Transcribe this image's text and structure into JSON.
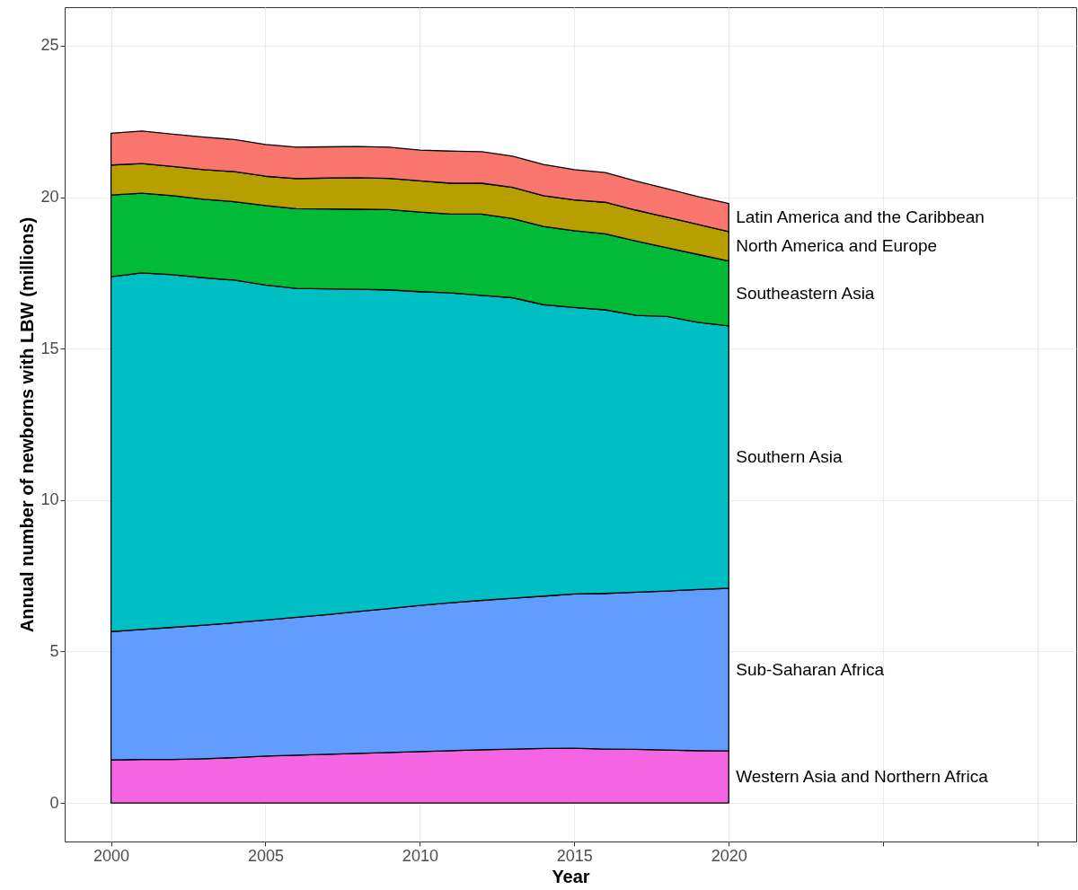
{
  "chart_data": {
    "type": "area",
    "stacked": true,
    "xlabel": "Year",
    "ylabel": "Annual number of newborns with LBW (millions)",
    "x": [
      2000,
      2001,
      2002,
      2003,
      2004,
      2005,
      2006,
      2007,
      2008,
      2009,
      2010,
      2011,
      2012,
      2013,
      2014,
      2015,
      2016,
      2017,
      2018,
      2019,
      2020
    ],
    "series": [
      {
        "name": "Western Asia and Northern Africa",
        "color": "#f564e3",
        "values": [
          1.42,
          1.44,
          1.44,
          1.46,
          1.5,
          1.55,
          1.58,
          1.61,
          1.64,
          1.67,
          1.7,
          1.73,
          1.76,
          1.78,
          1.8,
          1.81,
          1.78,
          1.77,
          1.75,
          1.73,
          1.72
        ]
      },
      {
        "name": "Sub-Saharan Africa",
        "color": "#619cff",
        "values": [
          4.24,
          4.29,
          4.36,
          4.41,
          4.45,
          4.49,
          4.55,
          4.61,
          4.68,
          4.75,
          4.82,
          4.88,
          4.93,
          4.98,
          5.03,
          5.09,
          5.14,
          5.19,
          5.25,
          5.32,
          5.37
        ]
      },
      {
        "name": "Southern Asia",
        "color": "#00bfc4",
        "values": [
          11.71,
          11.77,
          11.64,
          11.47,
          11.31,
          11.06,
          10.86,
          10.75,
          10.64,
          10.52,
          10.36,
          10.23,
          10.07,
          9.92,
          9.62,
          9.46,
          9.36,
          9.14,
          9.06,
          8.82,
          8.66
        ]
      },
      {
        "name": "Southeastern Asia",
        "color": "#00ba38",
        "values": [
          2.7,
          2.63,
          2.61,
          2.59,
          2.59,
          2.62,
          2.63,
          2.64,
          2.64,
          2.65,
          2.63,
          2.6,
          2.68,
          2.61,
          2.58,
          2.53,
          2.51,
          2.45,
          2.27,
          2.24,
          2.14
        ]
      },
      {
        "name": "North America and Europe",
        "color": "#b79f00",
        "values": [
          0.99,
          0.98,
          0.96,
          0.98,
          0.99,
          0.97,
          0.99,
          1.02,
          1.04,
          1.03,
          1.03,
          1.02,
          1.02,
          1.03,
          1.02,
          1.02,
          1.04,
          1.02,
          1.01,
          0.99,
          0.97
        ]
      },
      {
        "name": "Latin America and the Caribbean",
        "color": "#f8766d",
        "values": [
          1.05,
          1.07,
          1.07,
          1.07,
          1.06,
          1.05,
          1.04,
          1.03,
          1.03,
          1.03,
          1.01,
          1.06,
          1.04,
          1.03,
          1.03,
          1.0,
          0.98,
          0.96,
          0.94,
          0.92,
          0.93
        ]
      }
    ],
    "xlim": [
      1998.5,
      2031.25
    ],
    "ylim": [
      -1.27,
      26.27
    ],
    "xticks": [
      2000,
      2005,
      2010,
      2015,
      2020,
      {
        "value": 2025,
        "label": null
      },
      {
        "value": 2030,
        "label": null
      }
    ],
    "yticks": [
      0,
      5,
      10,
      15,
      20,
      25
    ],
    "grid": true
  }
}
